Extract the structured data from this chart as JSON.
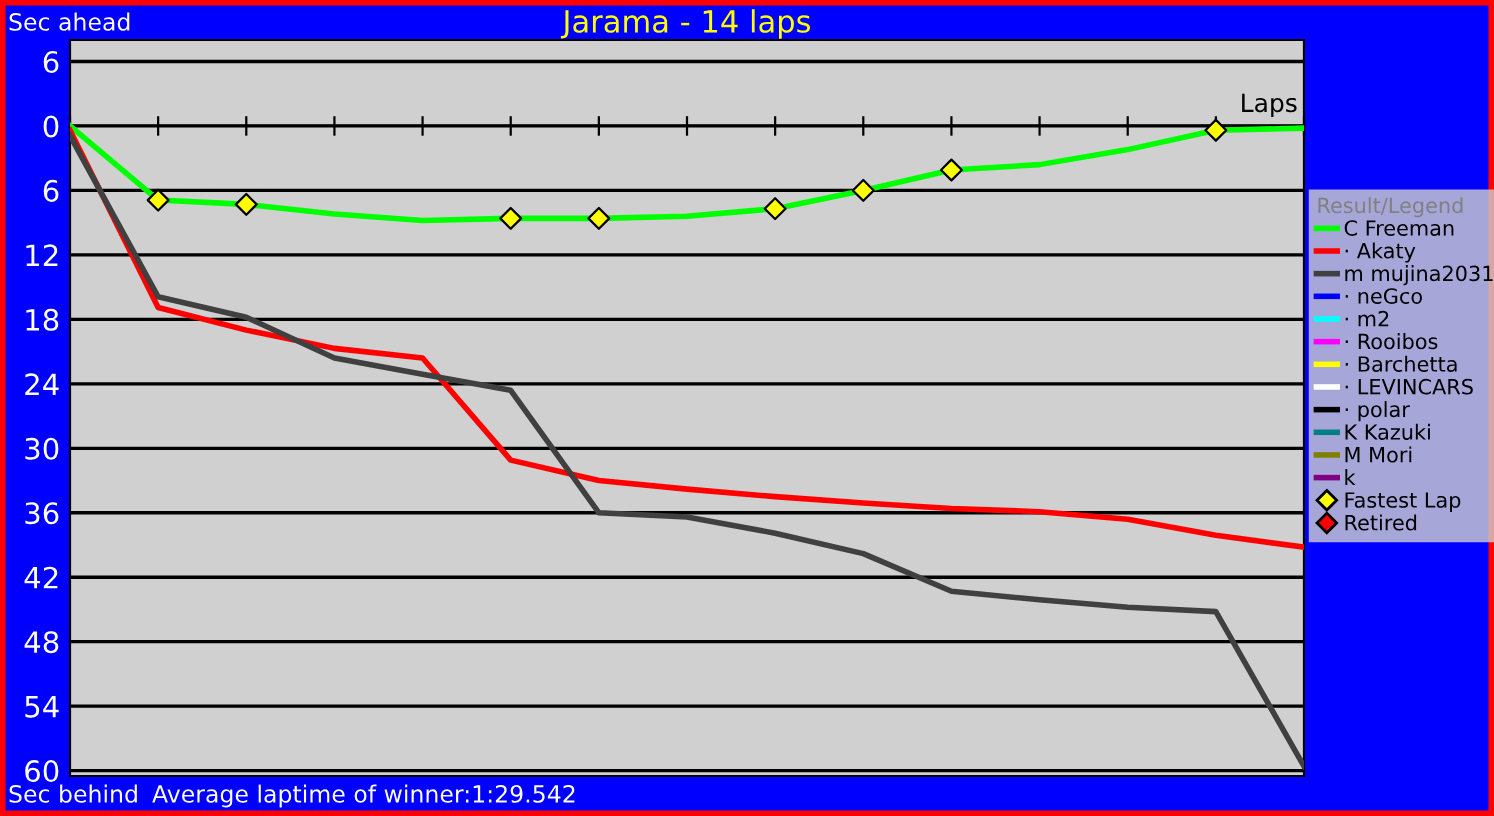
{
  "chart_data": {
    "type": "line",
    "title": "Jarama - 14 laps",
    "xlabel": "Laps",
    "legend_title": "Result/Legend",
    "annotations": [
      "Sec ahead",
      "Sec behind",
      "Average laptime of winner:1:29.542"
    ],
    "categories": [
      null,
      null,
      null,
      null,
      null,
      null,
      null,
      null,
      null,
      null,
      null,
      null,
      null,
      null,
      null
    ],
    "ylim": [
      60.5,
      -8
    ],
    "yticks": [
      {
        "value": -6,
        "label": "6"
      },
      0,
      6,
      12,
      18,
      24,
      30,
      36,
      42,
      48,
      54,
      60
    ],
    "tick_labels": "y",
    "grid": "y",
    "legend": "right",
    "marker": "none",
    "line_style": "solid",
    "series": [
      {
        "name": "C Freeman",
        "color": "#00ff00",
        "values": [
          0,
          6.9,
          7.3,
          8.2,
          8.8,
          8.6,
          8.6,
          8.4,
          7.7,
          6.0,
          4.1,
          3.6,
          2.2,
          0.4,
          0.2
        ]
      },
      {
        "name": "· Akaty",
        "color": "#ff0000",
        "values": [
          0.4,
          16.9,
          19.0,
          20.7,
          21.6,
          31.1,
          33.0,
          33.8,
          34.5,
          35.1,
          35.6,
          35.9,
          36.6,
          38.1,
          39.2
        ]
      },
      {
        "name": "m mujina2031",
        "color": "#404040",
        "values": [
          0.9,
          15.9,
          17.8,
          21.6,
          23.1,
          24.6,
          36.0,
          36.4,
          37.9,
          39.8,
          43.3,
          44.1,
          44.8,
          45.2,
          59.6
        ]
      },
      {
        "name": "· neGco",
        "color": "#0000ff",
        "values": [
          null,
          null,
          null,
          null,
          null,
          null,
          null,
          null,
          null,
          null,
          null,
          null,
          null,
          null,
          null
        ]
      },
      {
        "name": "· m2",
        "color": "#00ffff",
        "values": [
          null,
          null,
          null,
          null,
          null,
          null,
          null,
          null,
          null,
          null,
          null,
          null,
          null,
          null,
          null
        ]
      },
      {
        "name": "· Rooibos",
        "color": "#ff00ff",
        "values": [
          null,
          null,
          null,
          null,
          null,
          null,
          null,
          null,
          null,
          null,
          null,
          null,
          null,
          null,
          null
        ]
      },
      {
        "name": "· Barchetta",
        "color": "#ffff00",
        "values": [
          null,
          null,
          null,
          null,
          null,
          null,
          null,
          null,
          null,
          null,
          null,
          null,
          null,
          null,
          null
        ]
      },
      {
        "name": "· LEVINCARS",
        "color": "#ffffff",
        "values": [
          null,
          null,
          null,
          null,
          null,
          null,
          null,
          null,
          null,
          null,
          null,
          null,
          null,
          null,
          null
        ]
      },
      {
        "name": "· polar",
        "color": "#000000",
        "values": [
          null,
          null,
          null,
          null,
          null,
          null,
          null,
          null,
          null,
          null,
          null,
          null,
          null,
          null,
          null
        ]
      },
      {
        "name": "K Kazuki",
        "color": "#008080",
        "values": [
          null,
          null,
          null,
          null,
          null,
          null,
          null,
          null,
          null,
          null,
          null,
          null,
          null,
          null,
          null
        ]
      },
      {
        "name": "M Mori",
        "color": "#808000",
        "values": [
          null,
          null,
          null,
          null,
          null,
          null,
          null,
          null,
          null,
          null,
          null,
          null,
          null,
          null,
          null
        ]
      },
      {
        "name": "k",
        "color": "#800080",
        "values": [
          null,
          null,
          null,
          null,
          null,
          null,
          null,
          null,
          null,
          null,
          null,
          null,
          null,
          null,
          null
        ]
      },
      {
        "name": "Fastest Lap",
        "type": "scatter",
        "marker": "diamond",
        "color": "#ffff00",
        "values": [
          null,
          6.9,
          7.3,
          null,
          null,
          8.6,
          8.6,
          null,
          7.7,
          6.0,
          4.1,
          null,
          null,
          0.4,
          null
        ]
      },
      {
        "name": "Retired",
        "type": "scatter",
        "marker": "diamond",
        "color": "#ff0000",
        "values": [
          null,
          null,
          null,
          null,
          null,
          null,
          null,
          null,
          null,
          null,
          null,
          null,
          null,
          null,
          null
        ]
      }
    ]
  }
}
